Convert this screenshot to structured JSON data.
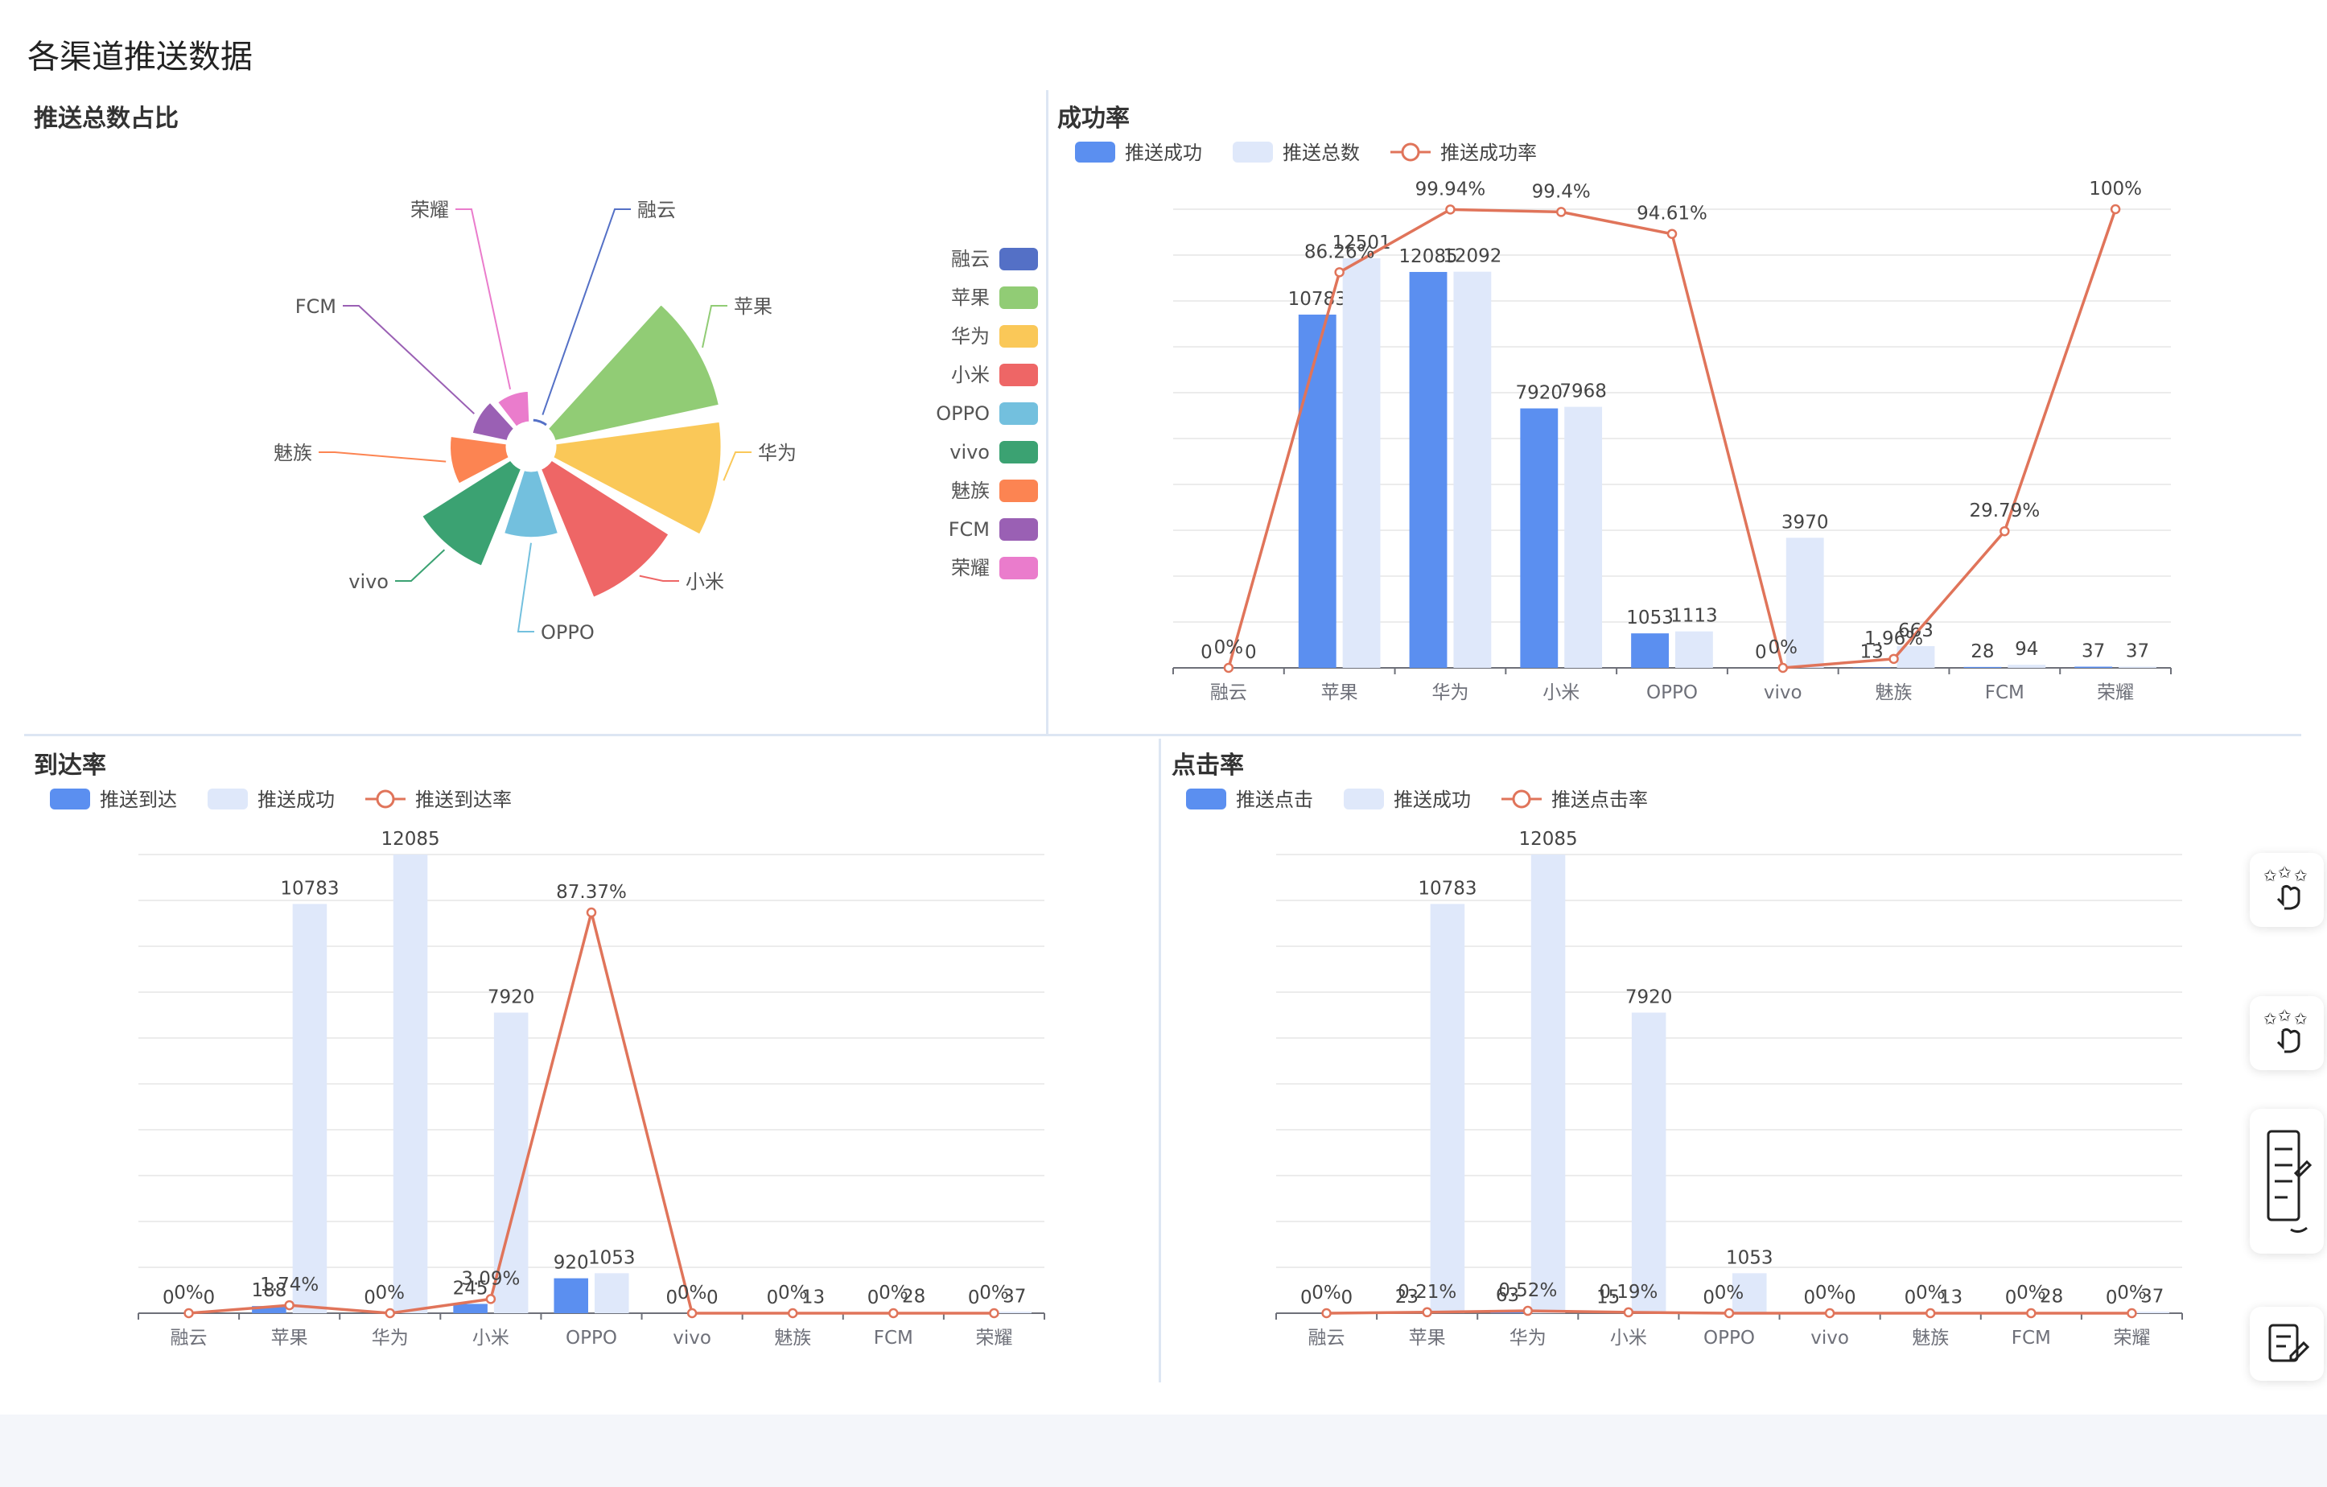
{
  "page": {
    "title": "各渠道推送数据"
  },
  "panels": {
    "pie": {
      "title": "推送总数占比"
    },
    "success": {
      "title": "成功率"
    },
    "arrival": {
      "title": "到达率"
    },
    "click": {
      "title": "点击率"
    }
  },
  "colors": {
    "barDark": "#5b8ff0",
    "barLight": "#dfe8fa",
    "line": "#e0745a",
    "axis": "#6e7079",
    "grid": "#e6e6e6",
    "divider": "#dde6f3",
    "slice_colors": [
      "#5470c6",
      "#91cc75",
      "#fac858",
      "#ee6666",
      "#73c0de",
      "#3ba272",
      "#fc8452",
      "#9a60b4",
      "#ea7ccc"
    ]
  },
  "icons": [
    "touch-stars-icon",
    "touch-stars-icon",
    "document-list-icon",
    "edit-note-icon"
  ],
  "chart_data": [
    {
      "type": "pie",
      "title": "推送总数占比",
      "rose": true,
      "labels": [
        "融云",
        "苹果",
        "华为",
        "小米",
        "OPPO",
        "vivo",
        "魅族",
        "FCM",
        "荣耀"
      ],
      "values": [
        0,
        12501,
        12092,
        7968,
        1113,
        3970,
        663,
        94,
        37
      ],
      "legend_position": "right"
    },
    {
      "type": "bar",
      "title": "成功率",
      "categories": [
        "融云",
        "苹果",
        "华为",
        "小米",
        "OPPO",
        "vivo",
        "魅族",
        "FCM",
        "荣耀"
      ],
      "series": [
        {
          "name": "推送成功",
          "type": "bar",
          "values": [
            0,
            10783,
            12085,
            7920,
            1053,
            0,
            13,
            28,
            37
          ],
          "labels": [
            "0",
            "10783",
            "12085",
            "7920",
            "1053",
            "0",
            "13",
            "28",
            "37"
          ]
        },
        {
          "name": "推送总数",
          "type": "bar",
          "values": [
            0,
            12501,
            12092,
            7968,
            1113,
            3970,
            663,
            94,
            37
          ],
          "labels": [
            "0",
            "12501",
            "12092",
            "7968",
            "1113",
            "3970",
            "663",
            "94",
            "37"
          ]
        },
        {
          "name": "推送成功率",
          "type": "line",
          "values": [
            0,
            86.26,
            99.94,
            99.4,
            94.61,
            0,
            1.96,
            29.79,
            100
          ],
          "labels": [
            "0%",
            "86.26%",
            "99.94%",
            "99.4%",
            "94.61%",
            "0%",
            "1.96%",
            "29.79%",
            "100%"
          ]
        }
      ],
      "ylim": [
        0,
        14000
      ],
      "ylim_rate": [
        0,
        100
      ],
      "grid": true,
      "legend_position": "top-left"
    },
    {
      "type": "bar",
      "title": "到达率",
      "categories": [
        "融云",
        "苹果",
        "华为",
        "小米",
        "OPPO",
        "vivo",
        "魅族",
        "FCM",
        "荣耀"
      ],
      "series": [
        {
          "name": "推送到达",
          "type": "bar",
          "values": [
            0,
            188,
            0,
            245,
            920,
            0,
            0,
            0,
            0
          ],
          "labels": [
            "0",
            "188",
            "0",
            "245",
            "920",
            "0",
            "0",
            "0",
            "0"
          ]
        },
        {
          "name": "推送成功",
          "type": "bar",
          "values": [
            0,
            10783,
            12085,
            7920,
            1053,
            0,
            13,
            28,
            37
          ],
          "labels": [
            "0",
            "10783",
            "12085",
            "7920",
            "1053",
            "0",
            "13",
            "28",
            "37"
          ]
        },
        {
          "name": "推送到达率",
          "type": "line",
          "values": [
            0,
            1.74,
            0,
            3.09,
            87.37,
            0,
            0,
            0,
            0
          ],
          "labels": [
            "0%",
            "1.74%",
            "0%",
            "3.09%",
            "87.37%",
            "0%",
            "0%",
            "0%",
            "0%"
          ]
        }
      ],
      "ylim": [
        0,
        12085
      ],
      "ylim_rate": [
        0,
        100
      ],
      "grid": true,
      "legend_position": "top-left"
    },
    {
      "type": "bar",
      "title": "点击率",
      "categories": [
        "融云",
        "苹果",
        "华为",
        "小米",
        "OPPO",
        "vivo",
        "魅族",
        "FCM",
        "荣耀"
      ],
      "series": [
        {
          "name": "推送点击",
          "type": "bar",
          "values": [
            0,
            23,
            63,
            15,
            0,
            0,
            0,
            0,
            0
          ],
          "labels": [
            "0",
            "23",
            "63",
            "15",
            "0",
            "0",
            "0",
            "0",
            "0"
          ]
        },
        {
          "name": "推送成功",
          "type": "bar",
          "values": [
            0,
            10783,
            12085,
            7920,
            1053,
            0,
            13,
            28,
            37
          ],
          "labels": [
            "0",
            "10783",
            "12085",
            "7920",
            "1053",
            "0",
            "13",
            "28",
            "37"
          ]
        },
        {
          "name": "推送点击率",
          "type": "line",
          "values": [
            0,
            0.21,
            0.52,
            0.19,
            0,
            0,
            0,
            0,
            0
          ],
          "labels": [
            "0%",
            "0.21%",
            "0.52%",
            "0.19%",
            "0%",
            "0%",
            "0%",
            "0%",
            "0%"
          ]
        }
      ],
      "ylim": [
        0,
        12085
      ],
      "ylim_rate": [
        0,
        100
      ],
      "grid": true,
      "legend_position": "top-left"
    }
  ]
}
